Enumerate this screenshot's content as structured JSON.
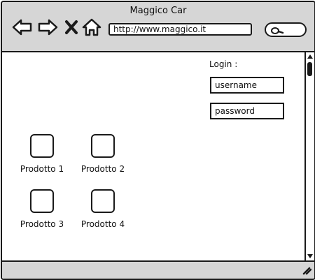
{
  "window": {
    "title": "Maggico Car"
  },
  "toolbar": {
    "buttons": [
      {
        "name": "back-button",
        "icon": "arrow-left-icon"
      },
      {
        "name": "forward-button",
        "icon": "arrow-right-icon"
      },
      {
        "name": "stop-button",
        "icon": "close-icon"
      },
      {
        "name": "home-button",
        "icon": "home-icon"
      }
    ],
    "url": "http://www.maggico.it",
    "search_icon": "search-icon"
  },
  "login": {
    "label": "Login :",
    "username_placeholder": "username",
    "password_placeholder": "password"
  },
  "products": [
    {
      "label": "Prodotto 1"
    },
    {
      "label": "Prodotto 2"
    },
    {
      "label": "Prodotto 3"
    },
    {
      "label": "Prodotto 4"
    }
  ],
  "colors": {
    "chrome": "#d6d6d6",
    "stroke": "#1a1a1a",
    "content": "#ffffff"
  }
}
